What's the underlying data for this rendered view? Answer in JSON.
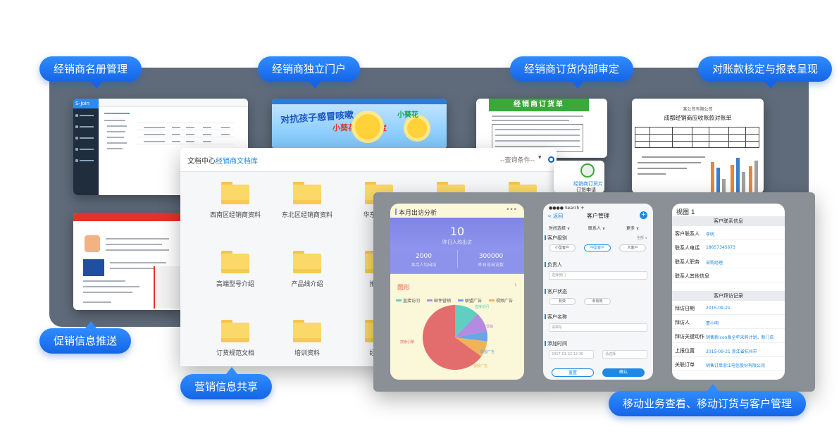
{
  "labels": {
    "register": "经销商名册管理",
    "portal": "经销商独立门户",
    "order_review": "经销商订货内部审定",
    "reconcile": "对账款核定与报表呈现",
    "promo": "促销信息推送",
    "marketing": "营销信息共享",
    "mobile": "移动业务查看、移动订货与客户管理"
  },
  "shot_admin": {
    "logo": "S-Join"
  },
  "shot_portal": {
    "headline": "对抗孩子感冒咳嗽",
    "sub": "小葵花抗感宝宝",
    "side": "小葵花"
  },
  "shot_order": {
    "title": "经销商订货单"
  },
  "shot_report": {
    "company": "某公司有限公司",
    "title": "成都经销商应收账款对账单"
  },
  "file_manager": {
    "crumb_root": "文档中心",
    "crumb_sep": ">",
    "crumb_current": "经销商文档库",
    "search_placeholder": "--查询条件--",
    "dropdown": "▾",
    "folders": [
      "西南区经销商资料",
      "东北区经销商资料",
      "华东大区经",
      "高端型号介绍",
      "产品线介绍",
      "推广案",
      "订货规范文档",
      "培训资料",
      "经销商"
    ]
  },
  "chat_peek": {
    "line1": "经销商订货片",
    "line2": "订货申请"
  },
  "phone_analysis": {
    "title": "本月出访分析",
    "menu": "•••",
    "big_value": "10",
    "big_label": "昨日人均出访",
    "stat1_value": "2000",
    "stat1_label": "本月人均出访",
    "stat2_value": "300000",
    "stat2_label": "昨日总出访数",
    "section": "图形",
    "chevron": "›",
    "legend": [
      {
        "name": "直接访问",
        "color": "#5ecfc0"
      },
      {
        "name": "邮件营销",
        "color": "#b38be0"
      },
      {
        "name": "联盟广告",
        "color": "#6aa5e8"
      },
      {
        "name": "视频广告",
        "color": "#f0b35a"
      }
    ],
    "pie_values": [
      {
        "name": "直接访问",
        "value": 12,
        "color": "#5ecfc0"
      },
      {
        "name": "邮件营销",
        "value": 10,
        "color": "#b38be0"
      },
      {
        "name": "联盟广告",
        "value": 5,
        "color": "#6aa5e8"
      },
      {
        "name": "视频广告",
        "value": 8,
        "color": "#f0b35a"
      },
      {
        "name": "搜索引擎",
        "value": 65,
        "color": "#e36d6d"
      }
    ],
    "pie_labels": [
      "搜索引擎",
      "邮件营销",
      "联盟广告",
      "视频广告",
      "直接访问"
    ]
  },
  "phone_customer": {
    "status": "●●●● Search ✈",
    "back": "< 返回",
    "title": "客户管理",
    "add": "+",
    "filter_time": "时间选择 ∨",
    "filter_contact": "联系人 ∨",
    "filter_more": "更多 ∨",
    "level_label": "客户级别",
    "level_all": "全部 ∨",
    "levels": [
      "小型客户",
      "中型客户",
      "大客户"
    ],
    "owner_label": "负责人",
    "owner_placeholder": "选择部门",
    "state_label": "客户状态",
    "states": [
      "有效",
      "未有效"
    ],
    "name_label": "客户名称",
    "name_placeholder": "请填写",
    "time_label": "添加时间",
    "time_from": "2017-01-22 12:30",
    "time_to": "请选择",
    "btn_reset": "重置",
    "btn_ok": "确认"
  },
  "phone_detail": {
    "view": "视图 1",
    "sec1": "客户联系信息",
    "rows1": [
      {
        "k": "客户联系人",
        "v": "李明"
      },
      {
        "k": "联系人电话",
        "v": "18657345673"
      },
      {
        "k": "联系人职务",
        "v": "采购经理"
      },
      {
        "k": "联系人其他信息",
        "v": ""
      }
    ],
    "sec2": "客户拜访记录",
    "rows2": [
      {
        "k": "拜访日期",
        "v": "2015-09-21"
      },
      {
        "k": "拜访人",
        "v": "董小明"
      },
      {
        "k": "拜访关键动作",
        "v": "销售新icon版全年采购计划，新门店"
      },
      {
        "k": "上报位置",
        "v": "2015-09-21 浙江省杭州市"
      },
      {
        "k": "关联订单",
        "v": "销售订单浙江电信股份有限公司"
      }
    ]
  }
}
